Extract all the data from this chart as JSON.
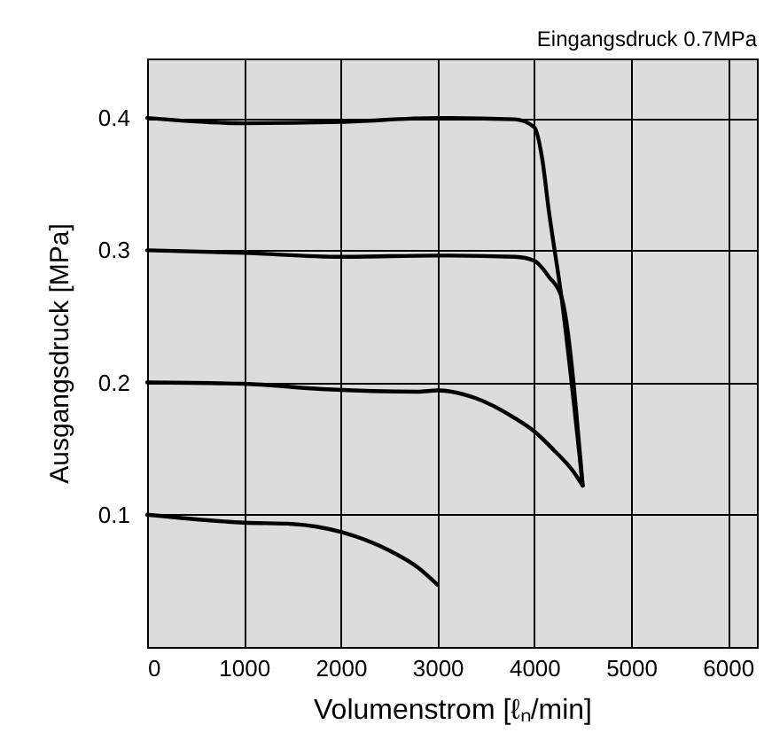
{
  "chart_data": {
    "type": "line",
    "subtitle": "Eingangsdruck 0.7MPa",
    "xlabel": "Volumenstrom [ℓₙ/min]",
    "ylabel": "Ausgangsdruck [MPa]",
    "xlim": [
      0,
      6300
    ],
    "xticks": [
      0,
      1000,
      2000,
      3000,
      4000,
      5000,
      6000
    ],
    "ylim": [
      0,
      0.445
    ],
    "yticks": [
      0.1,
      0.2,
      0.3,
      0.4
    ],
    "grid": true,
    "legend": false,
    "marker": "none",
    "line_style": "solid",
    "series": [
      {
        "color": "#000000",
        "x": [
          0,
          1000,
          2000,
          3000,
          3800,
          4000,
          4080,
          4150,
          4280,
          4500
        ],
        "values": [
          0.4,
          0.396,
          0.397,
          0.4,
          0.399,
          0.393,
          0.37,
          0.33,
          0.265,
          0.122
        ]
      },
      {
        "color": "#000000",
        "x": [
          0,
          1000,
          2000,
          3000,
          3800,
          4000,
          4150,
          4280,
          4500
        ],
        "values": [
          0.3,
          0.298,
          0.295,
          0.296,
          0.295,
          0.292,
          0.28,
          0.265,
          0.122
        ]
      },
      {
        "color": "#000000",
        "x": [
          0,
          1000,
          1800,
          2800,
          3000,
          3400,
          3800,
          4000,
          4200,
          4400,
          4500
        ],
        "values": [
          0.2,
          0.199,
          0.195,
          0.193,
          0.194,
          0.188,
          0.173,
          0.163,
          0.149,
          0.133,
          0.122
        ]
      },
      {
        "color": "#000000",
        "x": [
          0,
          1000,
          1500,
          2000,
          2500,
          2800,
          3000
        ],
        "values": [
          0.1,
          0.094,
          0.093,
          0.087,
          0.073,
          0.06,
          0.047
        ]
      }
    ]
  }
}
